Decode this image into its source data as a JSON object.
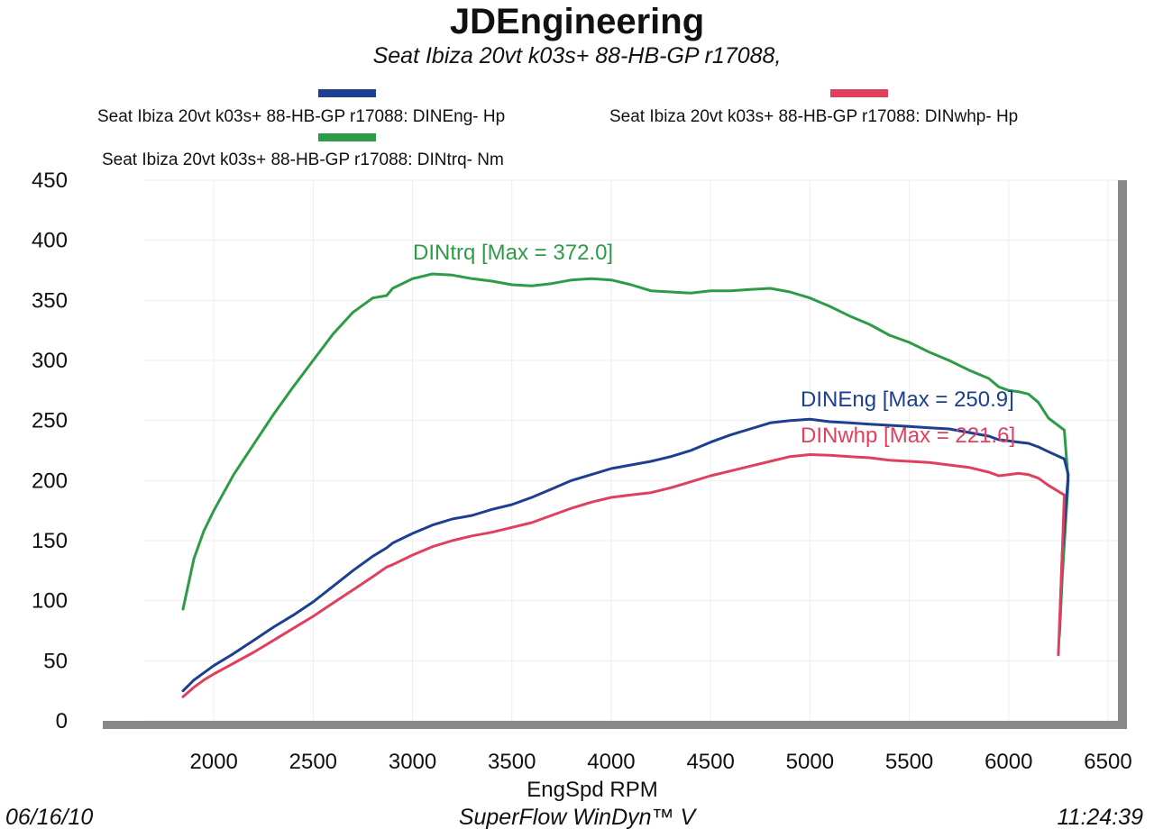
{
  "header": {
    "title": "JDEngineering",
    "subtitle": "Seat Ibiza 20vt k03s+ 88-HB-GP r17088,"
  },
  "legend": [
    {
      "label": "Seat Ibiza 20vt k03s+ 88-HB-GP r17088: DINEng- Hp",
      "color": "#1d3f8f"
    },
    {
      "label": "Seat Ibiza 20vt k03s+ 88-HB-GP r17088: DINwhp-  Hp",
      "color": "#e0405e"
    },
    {
      "label": "Seat Ibiza 20vt k03s+ 88-HB-GP r17088: DINtrq- Nm",
      "color": "#2e9b47"
    }
  ],
  "footer": {
    "date": "06/16/10",
    "software": "SuperFlow WinDyn™ V",
    "time": "11:24:39"
  },
  "chart_data": {
    "type": "line",
    "title": "JDEngineering",
    "xlabel": "EngSpd  RPM",
    "ylabel": "",
    "xlim": [
      1650,
      6550
    ],
    "ylim": [
      0,
      450
    ],
    "xticks": [
      2000,
      2500,
      3000,
      3500,
      4000,
      4500,
      5000,
      5500,
      6000,
      6500
    ],
    "yticks": [
      0,
      50,
      100,
      150,
      200,
      250,
      300,
      350,
      400,
      450
    ],
    "grid": true,
    "series": [
      {
        "name": "DINtrq",
        "unit": "Nm",
        "color": "#2e9b47",
        "annotation": "DINtrq [Max = 372.0]",
        "x": [
          1845,
          1900,
          1950,
          2000,
          2100,
          2200,
          2300,
          2400,
          2500,
          2600,
          2700,
          2800,
          2870,
          2900,
          3000,
          3100,
          3200,
          3300,
          3400,
          3500,
          3600,
          3700,
          3800,
          3900,
          4000,
          4100,
          4200,
          4300,
          4400,
          4500,
          4600,
          4700,
          4800,
          4900,
          5000,
          5100,
          5200,
          5300,
          5400,
          5500,
          5600,
          5700,
          5800,
          5900,
          5950,
          6000,
          6050,
          6100,
          6150,
          6200,
          6280,
          6300,
          6270,
          6255
        ],
        "y": [
          93,
          135,
          158,
          175,
          205,
          230,
          255,
          278,
          300,
          322,
          340,
          352,
          354,
          360,
          368,
          372,
          371,
          368,
          366,
          363,
          362,
          364,
          367,
          368,
          367,
          363,
          358,
          357,
          356,
          358,
          358,
          359,
          360,
          357,
          352,
          345,
          337,
          330,
          321,
          315,
          307,
          300,
          292,
          285,
          278,
          275,
          274,
          272,
          265,
          252,
          242,
          200,
          120,
          70
        ]
      },
      {
        "name": "DINEng",
        "unit": "Hp",
        "color": "#1d3f8f",
        "annotation": "DINEng [Max = 250.9]",
        "x": [
          1845,
          1900,
          1950,
          2000,
          2100,
          2200,
          2300,
          2400,
          2500,
          2600,
          2700,
          2800,
          2870,
          2900,
          3000,
          3100,
          3200,
          3300,
          3400,
          3500,
          3600,
          3700,
          3800,
          3900,
          4000,
          4100,
          4200,
          4300,
          4400,
          4500,
          4600,
          4700,
          4800,
          4900,
          5000,
          5100,
          5200,
          5300,
          5400,
          5500,
          5600,
          5700,
          5800,
          5900,
          5950,
          6000,
          6050,
          6100,
          6150,
          6200,
          6280,
          6300,
          6270,
          6255
        ],
        "y": [
          25,
          34,
          40,
          46,
          56,
          67,
          78,
          88,
          99,
          112,
          125,
          137,
          144,
          148,
          156,
          163,
          168,
          171,
          176,
          180,
          186,
          193,
          200,
          205,
          210,
          213,
          216,
          220,
          225,
          232,
          238,
          243,
          248,
          250,
          251,
          249,
          248,
          247,
          246,
          245,
          244,
          243,
          240,
          237,
          234,
          233,
          232,
          231,
          228,
          224,
          218,
          205,
          140,
          72
        ]
      },
      {
        "name": "DINwhp",
        "unit": "Hp",
        "color": "#e0405e",
        "annotation": "DINwhp [Max = 221.6]",
        "x": [
          1845,
          1900,
          1950,
          2000,
          2100,
          2200,
          2300,
          2400,
          2500,
          2600,
          2700,
          2800,
          2870,
          2900,
          3000,
          3100,
          3200,
          3300,
          3400,
          3500,
          3600,
          3700,
          3800,
          3900,
          4000,
          4100,
          4200,
          4300,
          4400,
          4500,
          4600,
          4700,
          4800,
          4900,
          5000,
          5100,
          5200,
          5300,
          5400,
          5500,
          5600,
          5700,
          5800,
          5900,
          5950,
          6000,
          6050,
          6100,
          6150,
          6200,
          6250,
          6280,
          6270,
          6250
        ],
        "y": [
          20,
          28,
          34,
          39,
          48,
          57,
          67,
          77,
          87,
          98,
          109,
          120,
          128,
          130,
          138,
          145,
          150,
          154,
          157,
          161,
          165,
          171,
          177,
          182,
          186,
          188,
          190,
          194,
          199,
          204,
          208,
          212,
          216,
          220,
          221.6,
          221,
          220,
          219,
          217,
          216,
          215,
          213,
          211,
          207,
          204,
          205,
          206,
          205,
          202,
          196,
          191,
          188,
          140,
          55
        ]
      }
    ]
  }
}
